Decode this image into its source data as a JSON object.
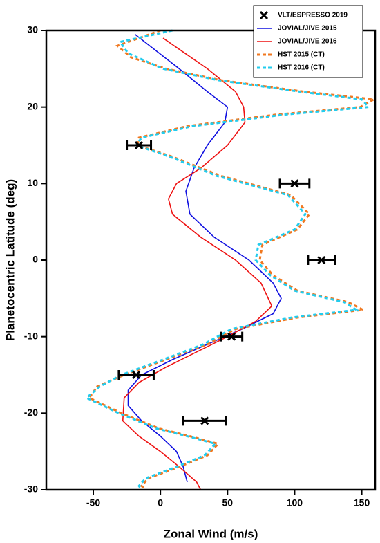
{
  "chart_data": {
    "type": "line",
    "orientation": "horizontal",
    "xlabel": "Zonal Wind (m/s)",
    "ylabel": "Planetocentric Latitude (deg)",
    "xlim": [
      -85,
      160
    ],
    "ylim": [
      -30,
      30
    ],
    "xticks": [
      -50,
      0,
      50,
      100,
      150
    ],
    "yticks": [
      -30,
      -20,
      -10,
      0,
      10,
      20,
      30
    ],
    "legend": "upper right",
    "series": [
      {
        "name": "JOVIAL/JIVE 2015",
        "color": "#1010e0",
        "dash": false,
        "latitude": [
          29.5,
          25,
          22,
          20,
          18,
          15,
          12,
          9,
          6,
          3,
          0,
          -3,
          -5,
          -7,
          -9,
          -11,
          -13,
          -15,
          -17,
          -19,
          -21,
          -23,
          -25,
          -27,
          -29
        ],
        "values": [
          -19,
          14,
          35,
          50,
          48,
          35,
          25,
          19,
          22,
          40,
          66,
          84,
          90,
          84,
          61,
          35,
          9,
          -14,
          -24,
          -24,
          -14,
          0,
          12,
          17,
          20
        ]
      },
      {
        "name": "JOVIAL/JIVE 2016",
        "color": "#ee1111",
        "dash": false,
        "latitude": [
          29,
          25,
          22,
          20,
          18,
          15,
          12,
          10,
          8,
          6,
          3,
          0,
          -3,
          -6,
          -8,
          -10,
          -12,
          -14,
          -16,
          -18,
          -21,
          -23,
          -25,
          -27,
          -29,
          -30
        ],
        "values": [
          2,
          35,
          56,
          62,
          63,
          50,
          30,
          12,
          6,
          9,
          30,
          56,
          75,
          83,
          71,
          50,
          27,
          4,
          -16,
          -27,
          -28,
          -16,
          0,
          14,
          27,
          30
        ]
      },
      {
        "name": "HST 2015 (CT)",
        "color": "#f07820",
        "dash": true,
        "latitude": [
          30,
          28,
          26.5,
          25,
          23.5,
          22,
          21,
          20,
          19,
          17.5,
          16,
          15,
          13.5,
          11,
          8.5,
          6,
          4,
          2,
          0,
          -2,
          -4,
          -5.5,
          -6.5,
          -7.5,
          -9,
          -11,
          -13,
          -15,
          -16.5,
          -18,
          -20,
          -22,
          -23,
          -24,
          -25.5,
          -27,
          -28.5,
          -29.5,
          -30
        ],
        "values": [
          0,
          -32,
          -22,
          4,
          45,
          107,
          159,
          149,
          86,
          20,
          -16,
          -17,
          9,
          45,
          97,
          111,
          102,
          76,
          74,
          84,
          102,
          140,
          151,
          102,
          56,
          35,
          4,
          -27,
          -47,
          -53,
          -29,
          -1,
          22,
          43,
          35,
          14,
          -9,
          -14,
          -11
        ]
      },
      {
        "name": "HST 2016 (CT)",
        "color": "#22ccee",
        "dash": true,
        "latitude": [
          30,
          28.5,
          27,
          25,
          23.5,
          22,
          21,
          20,
          19,
          17.5,
          16,
          15,
          13.5,
          11,
          8.5,
          6,
          4,
          2,
          0,
          -2,
          -4,
          -5.5,
          -6.5,
          -7.5,
          -9,
          -11,
          -13,
          -15,
          -16.5,
          -18,
          -20,
          -22,
          -23,
          -24,
          -25.5,
          -27,
          -28.5,
          -29.5,
          -30
        ],
        "values": [
          9,
          -30,
          -24,
          2,
          43,
          104,
          150,
          155,
          92,
          24,
          -14,
          -18,
          7,
          42,
          95,
          108,
          100,
          73,
          71,
          82,
          100,
          137,
          146,
          98,
          53,
          32,
          2,
          -29,
          -45,
          -55,
          -31,
          -3,
          20,
          41,
          33,
          12,
          -11,
          -16,
          -14
        ]
      }
    ],
    "markers": {
      "name": "VLT/ESPRESSO 2019",
      "color": "#000000",
      "latitude": [
        15,
        10,
        0,
        -10,
        -15,
        -21
      ],
      "values": [
        -16,
        100,
        120,
        53,
        -18,
        33
      ],
      "errors": [
        9,
        11,
        10,
        8,
        13,
        16
      ]
    }
  }
}
